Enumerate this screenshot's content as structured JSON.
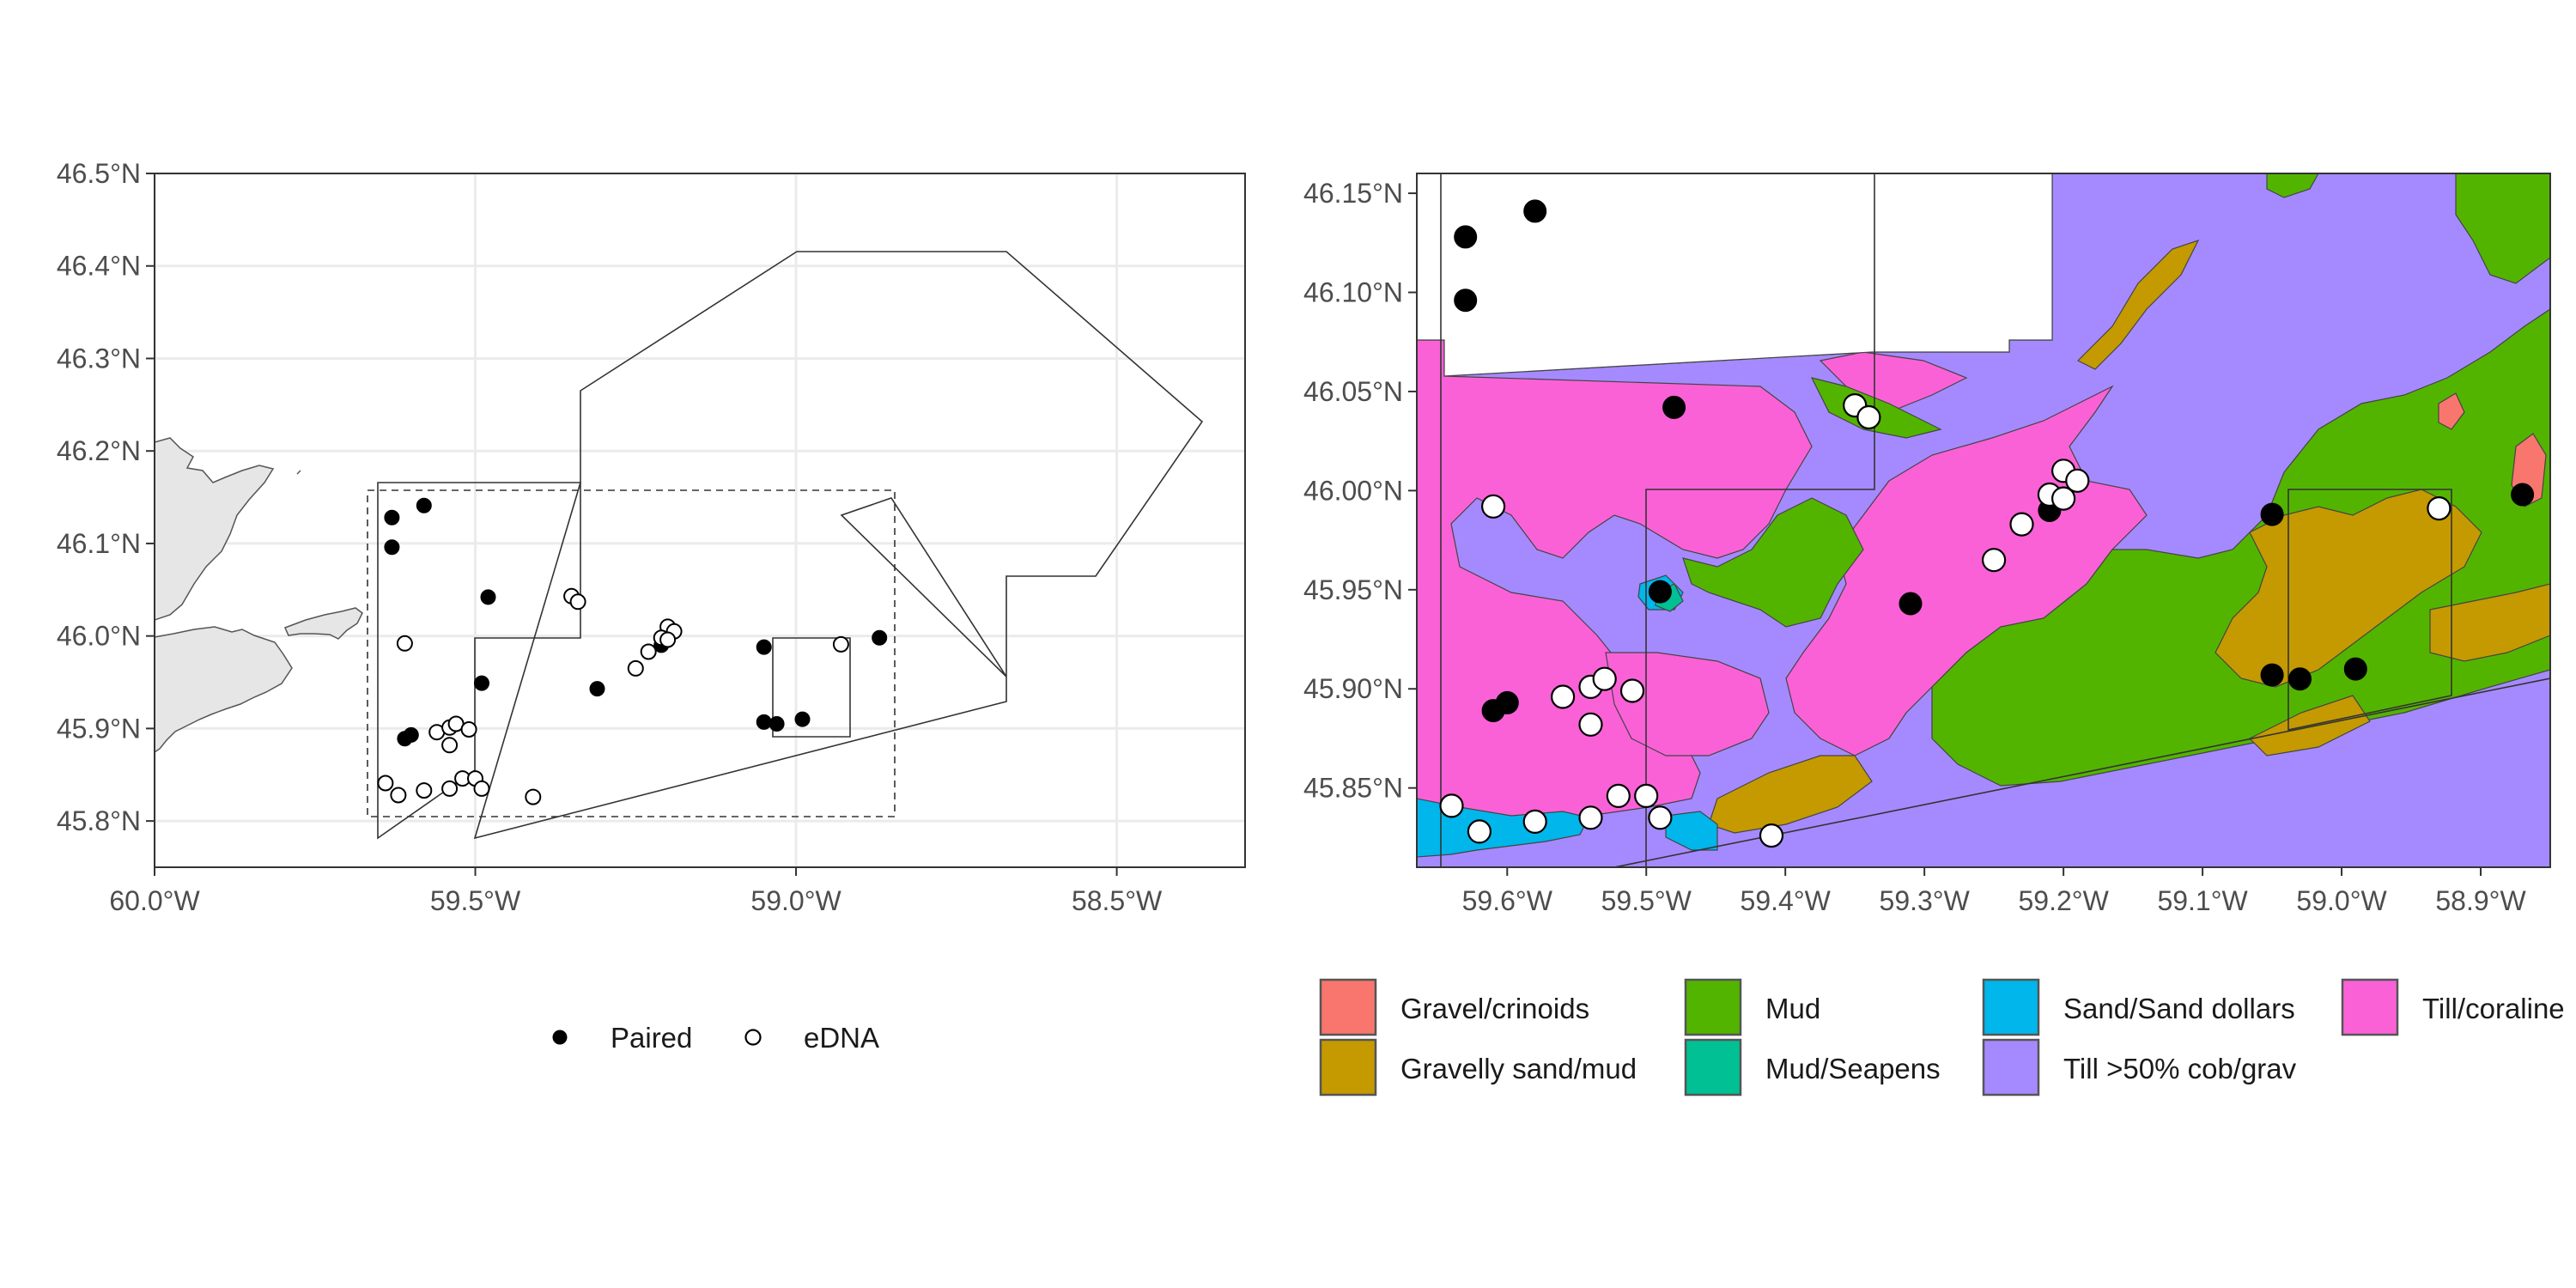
{
  "left_map": {
    "y_ticks": [
      "46.5°N",
      "46.4°N",
      "46.3°N",
      "46.2°N",
      "46.1°N",
      "46.0°N",
      "45.9°N",
      "45.8°N"
    ],
    "x_ticks": [
      "60.0°W",
      "59.5°W",
      "59.0°W",
      "58.5°W"
    ],
    "legend": {
      "paired_label": "Paired",
      "edna_label": "eDNA"
    },
    "xlim": [
      -60.0,
      -58.3
    ],
    "ylim": [
      45.75,
      46.5
    ]
  },
  "right_map": {
    "y_ticks": [
      "46.15°N",
      "46.10°N",
      "46.05°N",
      "46.00°N",
      "45.95°N",
      "45.90°N",
      "45.85°N"
    ],
    "x_ticks": [
      "59.6°W",
      "59.5°W",
      "59.4°W",
      "59.3°W",
      "59.2°W",
      "59.1°W",
      "59.0°W",
      "58.9°W"
    ],
    "legend": [
      {
        "label": "Gravel/crinoids",
        "color": "#F8766D"
      },
      {
        "label": "Gravelly sand/mud",
        "color": "#C49A00"
      },
      {
        "label": "Mud",
        "color": "#53B400"
      },
      {
        "label": "Mud/Seapens",
        "color": "#00C094"
      },
      {
        "label": "Sand/Sand dollars",
        "color": "#00B6EB"
      },
      {
        "label": "Till >50% cob/grav",
        "color": "#A58AFF"
      },
      {
        "label": "Till/coraline",
        "color": "#FB61D7"
      }
    ],
    "xlim": [
      -59.665,
      -58.85
    ],
    "ylim": [
      45.81,
      46.16
    ]
  },
  "chart_data": [
    {
      "type": "scatter",
      "panel": "left",
      "series": [
        {
          "name": "Paired",
          "points": [
            [
              -59.63,
              46.128
            ],
            [
              -59.58,
              46.141
            ],
            [
              -59.63,
              46.096
            ],
            [
              -59.48,
              46.042
            ],
            [
              -59.49,
              45.949
            ],
            [
              -59.31,
              45.943
            ],
            [
              -59.21,
              45.99
            ],
            [
              -59.05,
              45.988
            ],
            [
              -58.87,
              45.998
            ],
            [
              -59.05,
              45.907
            ],
            [
              -59.03,
              45.905
            ],
            [
              -58.99,
              45.91
            ],
            [
              -59.61,
              45.889
            ],
            [
              -59.6,
              45.893
            ]
          ]
        },
        {
          "name": "eDNA",
          "points": [
            [
              -59.35,
              46.043
            ],
            [
              -59.34,
              46.037
            ],
            [
              -59.2,
              46.01
            ],
            [
              -59.19,
              46.005
            ],
            [
              -59.21,
              45.998
            ],
            [
              -59.2,
              45.996
            ],
            [
              -59.23,
              45.983
            ],
            [
              -59.25,
              45.965
            ],
            [
              -58.93,
              45.991
            ],
            [
              -59.61,
              45.992
            ],
            [
              -59.56,
              45.896
            ],
            [
              -59.54,
              45.901
            ],
            [
              -59.53,
              45.905
            ],
            [
              -59.51,
              45.899
            ],
            [
              -59.54,
              45.882
            ],
            [
              -59.64,
              45.841
            ],
            [
              -59.62,
              45.828
            ],
            [
              -59.58,
              45.833
            ],
            [
              -59.54,
              45.835
            ],
            [
              -59.52,
              45.846
            ],
            [
              -59.5,
              45.846
            ],
            [
              -59.49,
              45.835
            ],
            [
              -59.41,
              45.826
            ]
          ]
        }
      ]
    },
    {
      "type": "scatter",
      "panel": "right",
      "series": [
        {
          "name": "Paired",
          "points": [
            [
              -59.63,
              46.128
            ],
            [
              -59.58,
              46.141
            ],
            [
              -59.63,
              46.096
            ],
            [
              -59.48,
              46.042
            ],
            [
              -59.49,
              45.949
            ],
            [
              -59.31,
              45.943
            ],
            [
              -59.21,
              45.99
            ],
            [
              -59.05,
              45.988
            ],
            [
              -58.87,
              45.998
            ],
            [
              -59.05,
              45.907
            ],
            [
              -59.03,
              45.905
            ],
            [
              -58.99,
              45.91
            ],
            [
              -59.61,
              45.889
            ],
            [
              -59.6,
              45.893
            ]
          ]
        },
        {
          "name": "eDNA",
          "points": [
            [
              -59.35,
              46.043
            ],
            [
              -59.34,
              46.037
            ],
            [
              -59.2,
              46.01
            ],
            [
              -59.19,
              46.005
            ],
            [
              -59.21,
              45.998
            ],
            [
              -59.2,
              45.996
            ],
            [
              -59.23,
              45.983
            ],
            [
              -59.25,
              45.965
            ],
            [
              -58.93,
              45.991
            ],
            [
              -59.61,
              45.992
            ],
            [
              -59.56,
              45.896
            ],
            [
              -59.54,
              45.901
            ],
            [
              -59.53,
              45.905
            ],
            [
              -59.51,
              45.899
            ],
            [
              -59.54,
              45.882
            ],
            [
              -59.64,
              45.841
            ],
            [
              -59.62,
              45.828
            ],
            [
              -59.58,
              45.833
            ],
            [
              -59.54,
              45.835
            ],
            [
              -59.52,
              45.846
            ],
            [
              -59.5,
              45.846
            ],
            [
              -59.49,
              45.835
            ],
            [
              -59.41,
              45.826
            ]
          ]
        }
      ]
    }
  ]
}
